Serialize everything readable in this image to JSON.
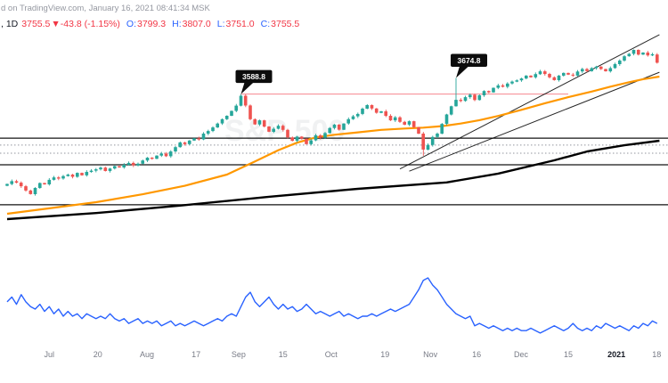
{
  "header": {
    "publish_line": "d on TradingView.com, January 16, 2021 08:41:34 MSK",
    "legend": {
      "symbol": ", 1D",
      "price": "3755.5",
      "change": "▼-43.8 (-1.15%)",
      "ohlc": [
        {
          "label": "O:",
          "value": "3799.3"
        },
        {
          "label": "H:",
          "value": "3807.0"
        },
        {
          "label": "L:",
          "value": "3751.0"
        },
        {
          "label": "C:",
          "value": "3755.5"
        }
      ]
    }
  },
  "watermark": "S&P 500",
  "colors": {
    "up": "#26a69a",
    "down": "#ef5350",
    "ma_fast": "#ff9800",
    "ma_slow": "#000000",
    "indicator_line": "#2962ff",
    "level_line": "#000000",
    "dotted_level": "#787b86",
    "red_level": "#f23645",
    "trendline": "#000000",
    "legend_value": "#f23645",
    "legend_label": "#2962ff",
    "axis_text": "#787b86",
    "axis_text_strong": "#131722",
    "callout_bg": "#0c0c0c",
    "callout_text": "#ffffff"
  },
  "chart_data": {
    "type": "candlestick",
    "title": "",
    "interval": "1D",
    "last_candle": {
      "open": 3799.3,
      "high": 3807.0,
      "low": 3751.0,
      "close": 3755.5,
      "change": -43.8,
      "change_pct": -1.15
    },
    "price_axis_range": [
      2640,
      3900
    ],
    "first_open": 3100,
    "closes": [
      3110,
      3125,
      3117,
      3098,
      3075,
      3056,
      3089,
      3115,
      3108,
      3132,
      3145,
      3139,
      3152,
      3160,
      3148,
      3169,
      3156,
      3174,
      3181,
      3188,
      3197,
      3179,
      3192,
      3205,
      3198,
      3212,
      3222,
      3209,
      3218,
      3235,
      3250,
      3244,
      3261,
      3272,
      3258,
      3283,
      3306,
      3331,
      3322,
      3341,
      3353,
      3347,
      3378,
      3392,
      3411,
      3432,
      3455,
      3473,
      3499,
      3527,
      3580,
      3528,
      3455,
      3427,
      3449,
      3416,
      3388,
      3404,
      3420,
      3398,
      3358,
      3340,
      3362,
      3351,
      3322,
      3342,
      3369,
      3356,
      3381,
      3408,
      3426,
      3399,
      3432,
      3455,
      3470,
      3483,
      3511,
      3530,
      3512,
      3489,
      3497,
      3473,
      3449,
      3465,
      3441,
      3426,
      3444,
      3412,
      3378,
      3293,
      3318,
      3360,
      3378,
      3430,
      3480,
      3524,
      3558,
      3552,
      3572,
      3585,
      3557,
      3582,
      3605,
      3598,
      3622,
      3635,
      3628,
      3645,
      3655,
      3662,
      3672,
      3687,
      3678,
      3695,
      3710,
      3696,
      3678,
      3663,
      3687,
      3701,
      3692,
      3687,
      3709,
      3722,
      3711,
      3727,
      3735,
      3722,
      3710,
      3727,
      3748,
      3767,
      3790,
      3803,
      3824,
      3799,
      3810,
      3795,
      3801,
      3755.5
    ],
    "overrides": {
      "50": {
        "h": 3588.8
      },
      "89": {
        "l": 3260
      },
      "96": {
        "h": 3674.8
      },
      "134": {
        "h": 3826.7
      },
      "139": {
        "o": 3799.3,
        "h": 3807.0,
        "l": 3751.0,
        "c": 3755.5
      }
    },
    "ma_fast": [
      [
        0,
        2951
      ],
      [
        9,
        2980
      ],
      [
        19,
        3013
      ],
      [
        29,
        3055
      ],
      [
        38,
        3100
      ],
      [
        47,
        3160
      ],
      [
        53,
        3230
      ],
      [
        58,
        3290
      ],
      [
        62,
        3330
      ],
      [
        66,
        3358
      ],
      [
        70,
        3372
      ],
      [
        75,
        3385
      ],
      [
        80,
        3398
      ],
      [
        85,
        3405
      ],
      [
        89,
        3410
      ],
      [
        93,
        3418
      ],
      [
        97,
        3432
      ],
      [
        101,
        3450
      ],
      [
        105,
        3472
      ],
      [
        110,
        3505
      ],
      [
        115,
        3540
      ],
      [
        120,
        3572
      ],
      [
        125,
        3602
      ],
      [
        129,
        3628
      ],
      [
        133,
        3652
      ],
      [
        136,
        3668
      ],
      [
        139.5,
        3682
      ]
    ],
    "ma_slow": [
      [
        0,
        2923
      ],
      [
        19,
        2955
      ],
      [
        37,
        2995
      ],
      [
        56,
        3042
      ],
      [
        75,
        3084
      ],
      [
        94,
        3118
      ],
      [
        105,
        3165
      ],
      [
        117,
        3236
      ],
      [
        124,
        3283
      ],
      [
        132,
        3316
      ],
      [
        139.5,
        3340
      ]
    ],
    "levels": [
      {
        "price": 3354,
        "style": "solid"
      },
      {
        "price": 3317,
        "style": "dotted"
      },
      {
        "price": 3274,
        "style": "dotted"
      },
      {
        "price": 3212,
        "style": "solid"
      },
      {
        "price": 2999,
        "style": "solid"
      }
    ],
    "red_line": {
      "price": 3588.8,
      "from_index": 50,
      "to_index": 120
    },
    "trendlines": [
      {
        "from": [
          84,
          3190
        ],
        "to": [
          139.5,
          3905
        ]
      },
      {
        "from": [
          86,
          3178
        ],
        "to": [
          139.5,
          3705
        ]
      }
    ],
    "callouts": [
      {
        "text": "3588.8",
        "index": 50,
        "price": 3588.8
      },
      {
        "text": "3674.8",
        "index": 96,
        "price": 3674.8
      }
    ],
    "x_ticks": [
      {
        "label": "Jul",
        "i": 9
      },
      {
        "label": "20",
        "i": 19.4
      },
      {
        "label": "Aug",
        "i": 29.9
      },
      {
        "label": "17",
        "i": 40.4
      },
      {
        "label": "Sep",
        "i": 49.5
      },
      {
        "label": "15",
        "i": 59
      },
      {
        "label": "Oct",
        "i": 69.3
      },
      {
        "label": "19",
        "i": 80.8
      },
      {
        "label": "Nov",
        "i": 90.5
      },
      {
        "label": "16",
        "i": 100.4
      },
      {
        "label": "Dec",
        "i": 109.9
      },
      {
        "label": "15",
        "i": 120
      },
      {
        "label": "2021",
        "i": 130.3,
        "strong": true
      },
      {
        "label": "18",
        "i": 138.9
      }
    ],
    "indicator": {
      "type": "line",
      "range": [
        12,
        45
      ],
      "values": [
        31,
        33,
        30,
        34,
        31,
        29,
        28,
        30,
        27,
        29,
        26,
        28,
        25,
        27,
        25,
        26,
        24,
        26,
        25,
        24,
        25,
        24,
        26,
        24,
        23,
        24,
        22,
        23,
        24,
        22,
        23,
        22,
        23,
        21,
        22,
        23,
        21,
        22,
        21,
        22,
        23,
        22,
        21,
        22,
        23,
        24,
        23,
        25,
        26,
        25,
        29,
        33,
        35,
        31,
        29,
        31,
        33,
        30,
        28,
        30,
        28,
        29,
        27,
        28,
        30,
        28,
        26,
        27,
        26,
        25,
        26,
        27,
        25,
        26,
        25,
        24,
        25,
        25,
        26,
        25,
        26,
        27,
        28,
        27,
        28,
        29,
        30,
        33,
        36,
        40,
        41,
        38,
        36,
        33,
        30,
        28,
        26,
        25,
        24,
        25,
        21,
        22,
        21,
        20,
        21,
        20,
        19,
        20,
        19,
        20,
        19,
        19,
        20,
        19,
        18,
        19,
        20,
        21,
        20,
        19,
        20,
        22,
        20,
        19,
        20,
        19,
        21,
        20,
        22,
        21,
        20,
        21,
        20,
        19,
        21,
        20,
        22,
        21,
        23,
        22
      ]
    }
  }
}
